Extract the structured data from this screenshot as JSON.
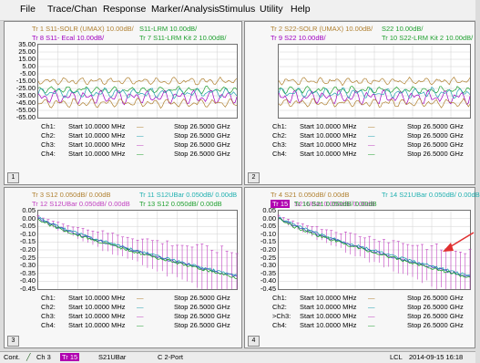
{
  "menu": [
    "File",
    "Trace/Chan",
    "Response",
    "Marker/Analysis",
    "Stimulus",
    "Utility",
    "Help"
  ],
  "colors": {
    "tan": "#b08030",
    "green": "#20a030",
    "purple": "#a000c0",
    "cyan": "#20a0b0",
    "magenta": "#c040c0",
    "teal": "#20b0b0",
    "blue": "#4050c0",
    "arrow": "#e03030"
  },
  "windows": [
    {
      "number": "1",
      "header_lines": [
        [
          {
            "t": "Tr 1  S11-SOLR (UMAX) 10.00dB/",
            "c": "tan"
          },
          {
            "t": "S11-LRM 10.00dB/",
            "c": "green"
          }
        ],
        [
          {
            "t": "Tr 8  S11- Ecal 10.00dB/",
            "c": "purple"
          },
          {
            "t": "Tr 7  S11-LRM Kit 2 10.00dB/",
            "c": "green"
          }
        ]
      ],
      "yticks": [
        "35.00",
        "25.00",
        "15.00",
        "5.00",
        "-5.00",
        "-15.00",
        "-25.00",
        "-35.00",
        "-45.00",
        "-55.00",
        "-65.00"
      ],
      "channels": [
        {
          "ch": "Ch1:",
          "start": "Start  10.0000 MHz",
          "stop": "Stop  26.5000 GHz"
        },
        {
          "ch": "Ch2:",
          "start": "Start  10.0000 MHz",
          "stop": "Stop  26.5000 GHz"
        },
        {
          "ch": "Ch3:",
          "start": "Start  10.0000 MHz",
          "stop": "Stop  26.5000 GHz"
        },
        {
          "ch": "Ch4:",
          "start": "Start  10.0000 MHz",
          "stop": "Stop  26.5000 GHz"
        }
      ]
    },
    {
      "number": "2",
      "header_lines": [
        [
          {
            "t": "Tr 2  S22-SOLR (UMAX) 10.00dB/",
            "c": "tan"
          },
          {
            "t": "S22 10.00dB/",
            "c": "green"
          }
        ],
        [
          {
            "t": "Tr 9  S22 10.00dB/",
            "c": "purple"
          },
          {
            "t": "Tr 10  S22-LRM Kit 2 10.00dB/",
            "c": "green"
          }
        ]
      ],
      "yticks": [],
      "channels": [
        {
          "ch": "Ch1:",
          "start": "Start  10.0000 MHz",
          "stop": "Stop  26.5000 GHz"
        },
        {
          "ch": "Ch2:",
          "start": "Start  10.0000 MHz",
          "stop": "Stop  26.5000 GHz"
        },
        {
          "ch": "Ch3:",
          "start": "Start  10.0000 MHz",
          "stop": "Stop  26.5000 GHz"
        },
        {
          "ch": "Ch4:",
          "start": "Start  10.0000 MHz",
          "stop": "Stop  26.5000 GHz"
        }
      ]
    },
    {
      "number": "3",
      "header_lines": [
        [
          {
            "t": "Tr 3  S12 0.050dB/  0.00dB",
            "c": "tan"
          },
          {
            "t": "Tr 11  S12UBar 0.050dB/  0.00dB",
            "c": "teal"
          }
        ],
        [
          {
            "t": "Tr 12  S12UBar 0.050dB/  0.00dB",
            "c": "magenta"
          },
          {
            "t": "Tr 13  S12 0.050dB/  0.00dB",
            "c": "green"
          }
        ]
      ],
      "yticks": [
        "0.05",
        "0.00",
        "-0.05",
        "-0.10",
        "-0.15",
        "-0.20",
        "-0.25",
        "-0.30",
        "-0.35",
        "-0.40",
        "-0.45"
      ],
      "channels": [
        {
          "ch": "Ch1:",
          "start": "Start  10.0000 MHz",
          "stop": "Stop  26.5000 GHz"
        },
        {
          "ch": "Ch2:",
          "start": "Start  10.0000 MHz",
          "stop": "Stop  26.5000 GHz"
        },
        {
          "ch": "Ch3:",
          "start": "Start  10.0000 MHz",
          "stop": "Stop  26.5000 GHz"
        },
        {
          "ch": "Ch4:",
          "start": "Start  10.0000 MHz",
          "stop": "Stop  26.5000 GHz"
        }
      ]
    },
    {
      "number": "4",
      "header_lines": [
        [
          {
            "t": "Tr 4  S21 0.050dB/  0.00dB",
            "c": "tan"
          },
          {
            "t": "Tr 14  S21UBar 0.050dB/  0.00dB",
            "c": "teal"
          }
        ],
        [
          {
            "t": "Tr 15",
            "c": "tag"
          },
          {
            "t": "S21UBar 0.050dB/  0.00dB",
            "c": "magenta"
          },
          {
            "t": "Tr 16  S21 0.050dB/  0.00dB",
            "c": "green"
          }
        ]
      ],
      "yticks": [
        "0.05",
        "0.00",
        "-0.05",
        "-0.10",
        "-0.15",
        "-0.20",
        "-0.25",
        "-0.30",
        "-0.35",
        "-0.40",
        "-0.45"
      ],
      "channels": [
        {
          "ch": "Ch1:",
          "start": "Start  10.0000 MHz",
          "stop": "Stop  26.5000 GHz"
        },
        {
          "ch": "Ch2:",
          "start": "Start  10.0000 MHz",
          "stop": "Stop  26.5000 GHz"
        },
        {
          "ch": ">Ch3:",
          "start": "Start  10.0000 MHz",
          "stop": "Stop  26.5000 GHz"
        },
        {
          "ch": "Ch4:",
          "start": "Start  10.0000 MHz",
          "stop": "Stop  26.5000 GHz"
        }
      ]
    }
  ],
  "status": {
    "mode": "Cont.",
    "channel": "Ch 3",
    "trace": "Tr 15",
    "param": "S21UBar",
    "cal": "C  2-Port",
    "lcl": "LCL",
    "datetime": "2014-09-15 16:18"
  }
}
